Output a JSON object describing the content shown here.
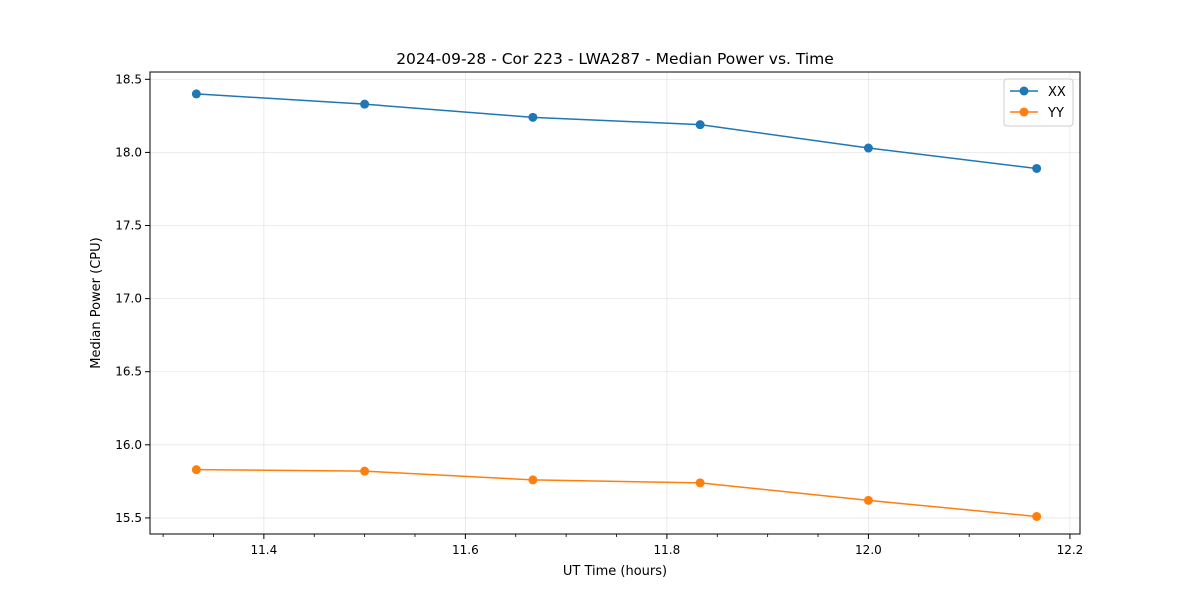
{
  "chart_data": {
    "type": "line",
    "title": "2024-09-28 - Cor 223 - LWA287 - Median Power vs. Time",
    "xlabel": "UT Time (hours)",
    "ylabel": "Median Power (CPU)",
    "xlim": [
      11.287,
      12.21
    ],
    "ylim": [
      15.39,
      18.55
    ],
    "x_ticks": [
      11.4,
      11.6,
      11.8,
      12.0,
      12.2
    ],
    "x_tick_labels": [
      "11.4",
      "11.6",
      "11.8",
      "12.0",
      "12.2"
    ],
    "x_minor_ticks": [
      11.3,
      11.35,
      11.45,
      11.5,
      11.55,
      11.65,
      11.7,
      11.75,
      11.85,
      11.9,
      11.95,
      12.05,
      12.1,
      12.15
    ],
    "y_ticks": [
      15.5,
      16.0,
      16.5,
      17.0,
      17.5,
      18.0,
      18.5
    ],
    "y_tick_labels": [
      "15.5",
      "16.0",
      "16.5",
      "17.0",
      "17.5",
      "18.0",
      "18.5"
    ],
    "grid": true,
    "legend_position": "top-right",
    "x": [
      11.333,
      11.5,
      11.667,
      11.833,
      12.0,
      12.167
    ],
    "series": [
      {
        "name": "XX",
        "color": "#1f77b4",
        "values": [
          18.4,
          18.33,
          18.24,
          18.19,
          18.03,
          17.89
        ]
      },
      {
        "name": "YY",
        "color": "#ff7f0e",
        "values": [
          15.83,
          15.82,
          15.76,
          15.74,
          15.62,
          15.51
        ]
      }
    ]
  }
}
